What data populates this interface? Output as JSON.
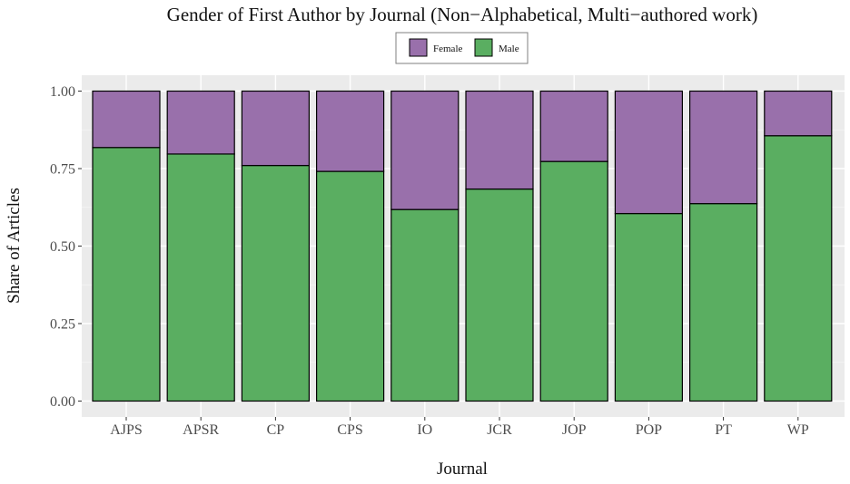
{
  "chart_data": {
    "type": "bar",
    "stacked": true,
    "title": "Gender of First Author by Journal (Non−Alphabetical, Multi−authored work)",
    "xlabel": "Journal",
    "ylabel": "Share of Articles",
    "ylim": [
      0,
      1
    ],
    "yticks": [
      "0.00",
      "0.25",
      "0.50",
      "0.75",
      "1.00"
    ],
    "categories": [
      "AJPS",
      "APSR",
      "CP",
      "CPS",
      "IO",
      "JCR",
      "JOP",
      "POP",
      "PT",
      "WP"
    ],
    "series": [
      {
        "name": "Male",
        "color": "#5aae61",
        "values": [
          0.818,
          0.797,
          0.76,
          0.741,
          0.618,
          0.684,
          0.773,
          0.605,
          0.637,
          0.856
        ]
      },
      {
        "name": "Female",
        "color": "#9970ab",
        "values": [
          0.182,
          0.203,
          0.24,
          0.259,
          0.382,
          0.316,
          0.227,
          0.395,
          0.363,
          0.144
        ]
      }
    ],
    "legend": {
      "position": "top",
      "entries": [
        "Female",
        "Male"
      ]
    },
    "grid": true,
    "panel_background": "#ebebeb"
  }
}
